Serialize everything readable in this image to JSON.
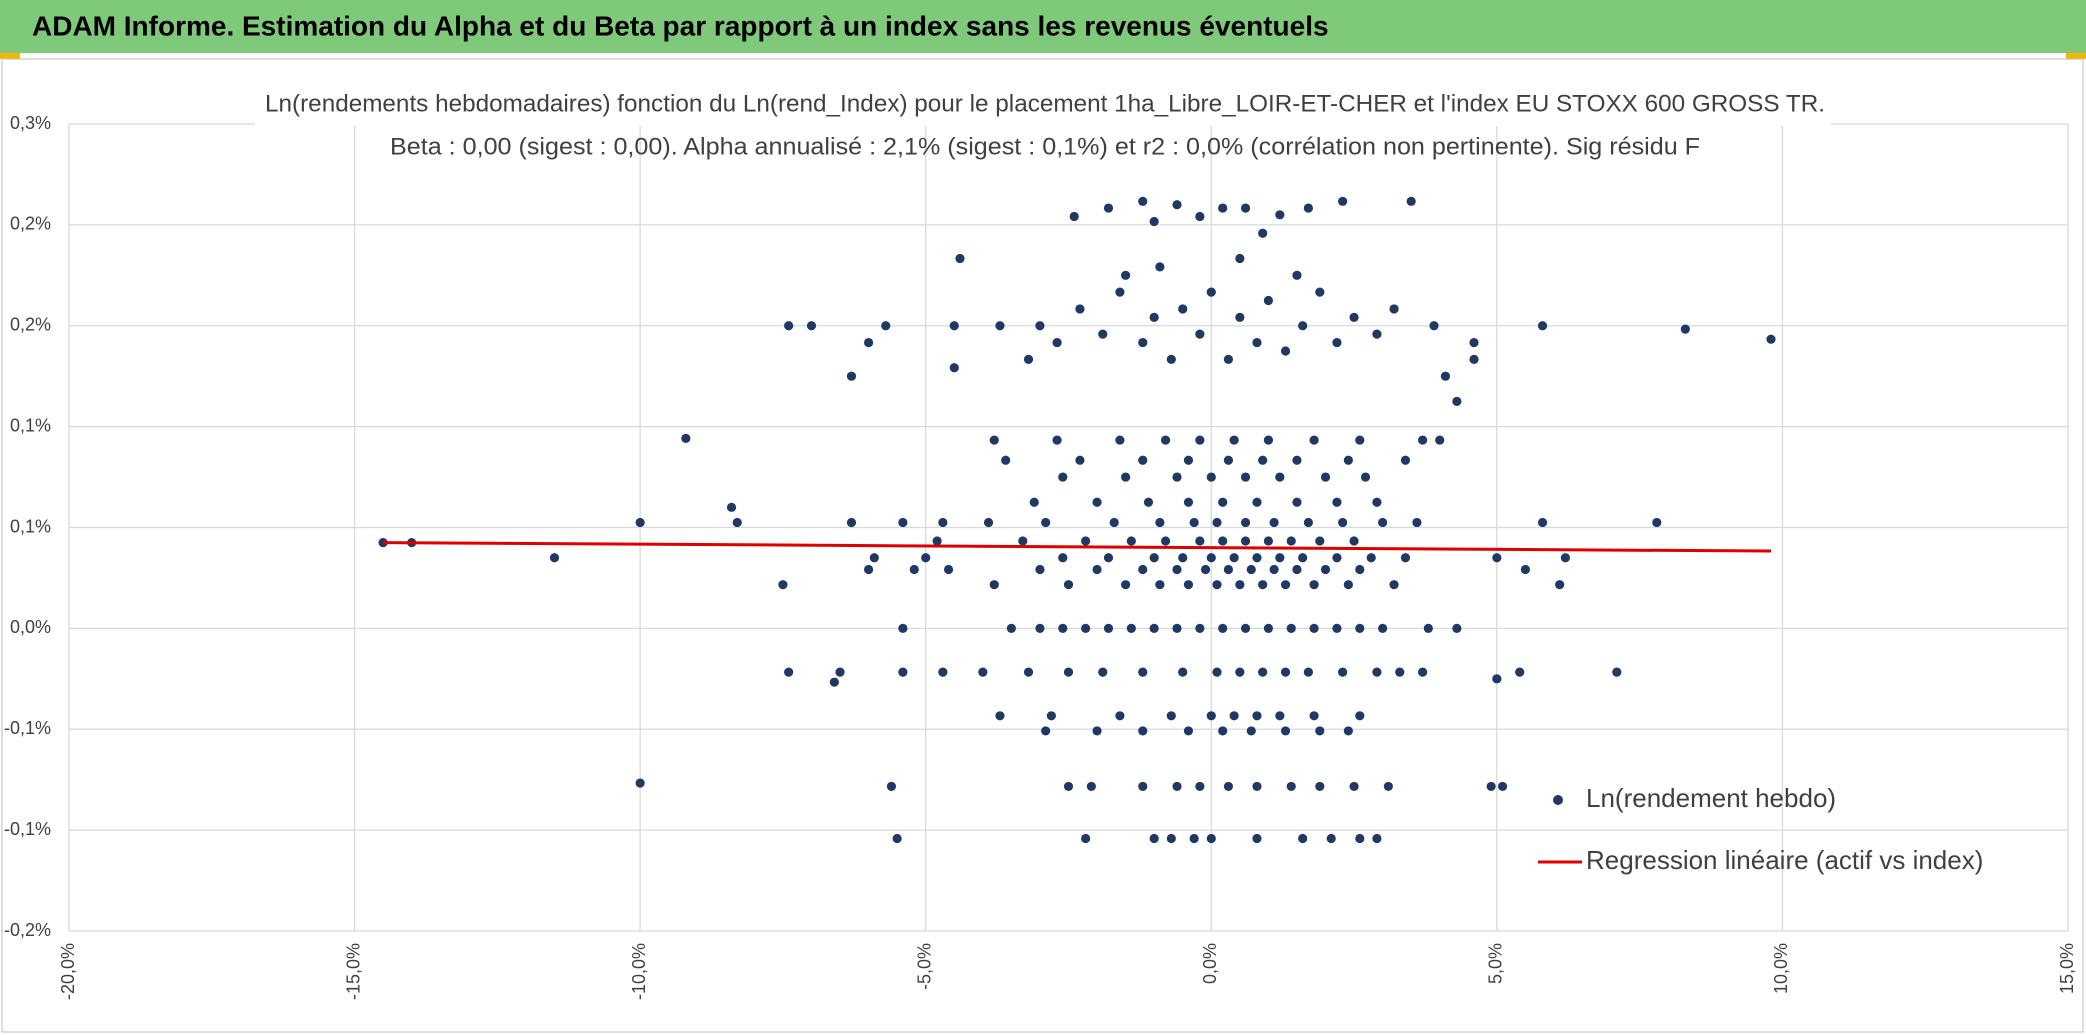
{
  "header": {
    "title": "ADAM Informe. Estimation du Alpha et du Beta par rapport à un index sans les revenus éventuels"
  },
  "chart_data": {
    "type": "scatter",
    "title": "Ln(rendements hebdomadaires) fonction du Ln(rend_Index) pour le placement 1ha_Libre_LOIR-ET-CHER et l'index EU STOXX 600 GROSS TR.",
    "subtitle": "Beta : 0,00 (sigest : 0,00). Alpha annualisé : 2,1% (sigest : 0,1%) et r2 : 0,0% (corrélation non pertinente). Sig résidu F",
    "xlim": [
      -20,
      15
    ],
    "ylim": [
      -0.18,
      0.3
    ],
    "xticks": [
      {
        "value": -20,
        "label": "-20,0%"
      },
      {
        "value": -15,
        "label": "-15,0%"
      },
      {
        "value": -10,
        "label": "-10,0%"
      },
      {
        "value": -5,
        "label": "-5,0%"
      },
      {
        "value": 0,
        "label": "0,0%"
      },
      {
        "value": 5,
        "label": "5,0%"
      },
      {
        "value": 10,
        "label": "10,0%"
      },
      {
        "value": 15,
        "label": "15,0%"
      }
    ],
    "yticks": [
      {
        "value": 0.3,
        "label": "0,3%"
      },
      {
        "value": 0.24,
        "label": "0,2%"
      },
      {
        "value": 0.18,
        "label": "0,2%"
      },
      {
        "value": 0.12,
        "label": "0,1%"
      },
      {
        "value": 0.06,
        "label": "0,1%"
      },
      {
        "value": 0,
        "label": "0,0%"
      },
      {
        "value": -0.06,
        "label": "-0,1%"
      },
      {
        "value": -0.12,
        "label": "-0,1%"
      },
      {
        "value": -0.18,
        "label": "-0,2%"
      }
    ],
    "grid": true,
    "series": [
      {
        "name": "Ln(rendement hebdo)",
        "type": "scatter",
        "color": "#203864",
        "x": [
          -14.5,
          -14.0,
          -11.5,
          -10.0,
          -9.2,
          -8.4,
          -8.3,
          -10.0,
          -7.5,
          -7.4,
          -7.4,
          -7.0,
          -6.6,
          -6.5,
          -6.3,
          -6.3,
          -6.0,
          -6.0,
          -5.9,
          -5.7,
          -5.6,
          -5.5,
          -5.4,
          -5.4,
          -5.4,
          -5.2,
          -5.0,
          -4.8,
          -4.7,
          -4.7,
          -4.6,
          -4.5,
          -4.5,
          -4.4,
          5.8,
          5.8,
          6.1,
          6.2,
          7.1,
          7.8,
          8.3,
          9.8,
          5.1,
          4.9,
          5.0,
          5.4,
          5.0,
          5.5,
          4.6,
          4.6,
          4.3,
          4.3,
          4.0,
          3.5,
          3.9,
          4.1,
          -3.2,
          -2.7,
          -2.3,
          -1.9,
          -1.6,
          -1.2,
          -1.0,
          -0.7,
          -0.5,
          -0.2,
          0.0,
          0.3,
          0.5,
          0.8,
          1.0,
          1.3,
          1.6,
          1.9,
          2.2,
          2.5,
          2.9,
          3.2,
          -1.5,
          -0.9,
          0.5,
          1.5,
          -2.4,
          -1.8,
          -1.2,
          -0.6,
          -0.2,
          0.2,
          0.6,
          1.2,
          1.7,
          2.3,
          0.9,
          -1.0,
          -3.0,
          -3.7,
          -3.5,
          -3.0,
          -2.6,
          -2.2,
          -1.8,
          -1.4,
          -1.0,
          -0.6,
          -0.2,
          0.2,
          0.6,
          1.0,
          1.4,
          1.8,
          2.2,
          2.6,
          3.0,
          3.8,
          -4.0,
          -3.2,
          -2.5,
          -1.9,
          -1.2,
          -0.5,
          0.1,
          0.5,
          0.9,
          1.3,
          1.7,
          2.3,
          2.9,
          3.3,
          3.7,
          -3.7,
          -2.8,
          -1.6,
          -0.7,
          0.0,
          0.4,
          0.8,
          1.2,
          1.8,
          2.6,
          -2.9,
          -2.0,
          -1.2,
          -0.4,
          0.2,
          0.7,
          1.3,
          1.9,
          2.4,
          -2.5,
          -2.1,
          -1.2,
          -0.6,
          -0.2,
          0.3,
          0.8,
          1.4,
          1.9,
          2.5,
          3.1,
          -2.2,
          -1.0,
          -0.7,
          -0.3,
          0.0,
          0.8,
          1.6,
          2.1,
          2.6,
          2.9,
          -3.8,
          -2.5,
          -1.5,
          -0.9,
          -0.4,
          0.1,
          0.5,
          0.9,
          1.3,
          1.8,
          2.4,
          3.2,
          -3.0,
          -2.0,
          -1.2,
          -0.6,
          -0.1,
          0.3,
          0.7,
          1.1,
          1.5,
          2.0,
          2.6,
          -2.6,
          -1.8,
          -1.0,
          -0.5,
          0.0,
          0.4,
          0.8,
          1.2,
          1.6,
          2.2,
          2.8,
          3.4,
          -3.3,
          -2.2,
          -1.4,
          -0.8,
          -0.2,
          0.2,
          0.6,
          1.0,
          1.4,
          1.9,
          2.5,
          -3.9,
          -2.9,
          -1.7,
          -0.9,
          -0.3,
          0.1,
          0.6,
          1.1,
          1.7,
          2.3,
          3.0,
          3.6,
          -3.1,
          -2.0,
          -1.1,
          -0.4,
          0.2,
          0.8,
          1.5,
          2.2,
          2.9,
          -2.6,
          -1.5,
          -0.6,
          0.0,
          0.6,
          1.2,
          2.0,
          2.7,
          -3.6,
          -2.3,
          -1.2,
          -0.4,
          0.3,
          0.9,
          1.5,
          2.4,
          3.4,
          -3.8,
          -2.7,
          -1.6,
          -0.8,
          -0.2,
          0.4,
          1.0,
          1.8,
          2.6,
          3.7
        ],
        "values": [
          0.051,
          0.051,
          0.042,
          0.063,
          0.113,
          0.072,
          0.063,
          -0.092,
          0.026,
          -0.026,
          0.18,
          0.18,
          -0.032,
          -0.026,
          0.15,
          0.063,
          0.035,
          0.17,
          0.042,
          0.18,
          -0.094,
          -0.125,
          0.0,
          0.063,
          -0.026,
          0.035,
          0.042,
          0.052,
          0.063,
          -0.026,
          0.035,
          0.155,
          0.18,
          0.22,
          0.063,
          0.18,
          0.026,
          0.042,
          -0.026,
          0.063,
          0.178,
          0.172,
          -0.094,
          -0.094,
          -0.03,
          -0.026,
          0.042,
          0.035,
          0.16,
          0.17,
          0.0,
          0.135,
          0.112,
          0.254,
          0.18,
          0.15,
          0.16,
          0.17,
          0.19,
          0.175,
          0.2,
          0.17,
          0.185,
          0.16,
          0.19,
          0.175,
          0.2,
          0.16,
          0.185,
          0.17,
          0.195,
          0.165,
          0.18,
          0.2,
          0.17,
          0.185,
          0.175,
          0.19,
          0.21,
          0.215,
          0.22,
          0.21,
          0.245,
          0.25,
          0.254,
          0.252,
          0.245,
          0.25,
          0.25,
          0.246,
          0.25,
          0.254,
          0.235,
          0.242,
          0.18,
          0.18,
          0.0,
          0.0,
          0.0,
          0.0,
          0.0,
          0.0,
          0.0,
          0.0,
          0.0,
          0.0,
          0.0,
          0.0,
          0.0,
          0.0,
          0.0,
          0.0,
          0.0,
          0.0,
          -0.026,
          -0.026,
          -0.026,
          -0.026,
          -0.026,
          -0.026,
          -0.026,
          -0.026,
          -0.026,
          -0.026,
          -0.026,
          -0.026,
          -0.026,
          -0.026,
          -0.026,
          -0.052,
          -0.052,
          -0.052,
          -0.052,
          -0.052,
          -0.052,
          -0.052,
          -0.052,
          -0.052,
          -0.052,
          -0.061,
          -0.061,
          -0.061,
          -0.061,
          -0.061,
          -0.061,
          -0.061,
          -0.061,
          -0.061,
          -0.094,
          -0.094,
          -0.094,
          -0.094,
          -0.094,
          -0.094,
          -0.094,
          -0.094,
          -0.094,
          -0.094,
          -0.094,
          -0.125,
          -0.125,
          -0.125,
          -0.125,
          -0.125,
          -0.125,
          -0.125,
          -0.125,
          -0.125,
          -0.125,
          0.026,
          0.026,
          0.026,
          0.026,
          0.026,
          0.026,
          0.026,
          0.026,
          0.026,
          0.026,
          0.026,
          0.026,
          0.035,
          0.035,
          0.035,
          0.035,
          0.035,
          0.035,
          0.035,
          0.035,
          0.035,
          0.035,
          0.035,
          0.042,
          0.042,
          0.042,
          0.042,
          0.042,
          0.042,
          0.042,
          0.042,
          0.042,
          0.042,
          0.042,
          0.042,
          0.052,
          0.052,
          0.052,
          0.052,
          0.052,
          0.052,
          0.052,
          0.052,
          0.052,
          0.052,
          0.052,
          0.063,
          0.063,
          0.063,
          0.063,
          0.063,
          0.063,
          0.063,
          0.063,
          0.063,
          0.063,
          0.063,
          0.063,
          0.075,
          0.075,
          0.075,
          0.075,
          0.075,
          0.075,
          0.075,
          0.075,
          0.075,
          0.09,
          0.09,
          0.09,
          0.09,
          0.09,
          0.09,
          0.09,
          0.09,
          0.1,
          0.1,
          0.1,
          0.1,
          0.1,
          0.1,
          0.1,
          0.1,
          0.1,
          0.112,
          0.112,
          0.112,
          0.112,
          0.112,
          0.112,
          0.112,
          0.112,
          0.112,
          0.112
        ]
      },
      {
        "name": "Regression linéaire (actif vs index)",
        "type": "line",
        "color": "#e00000",
        "x": [
          -14.5,
          9.8
        ],
        "values": [
          0.051,
          0.046
        ]
      }
    ]
  }
}
